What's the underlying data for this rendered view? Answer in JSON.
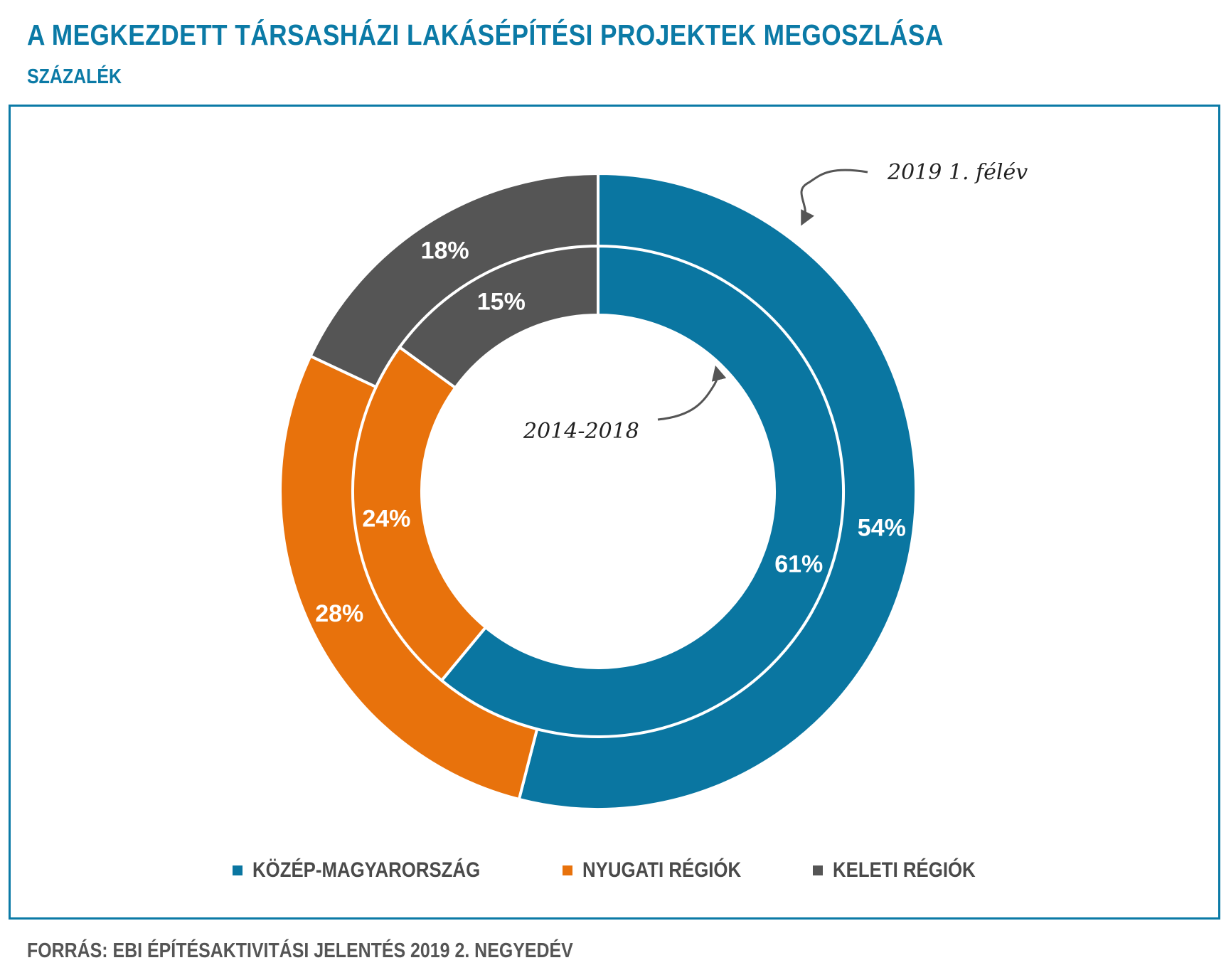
{
  "title": "A MEGKEZDETT TÁRSASHÁZI LAKÁSÉPÍTÉSI PROJEKTEK MEGOSZLÁSA",
  "subtitle": "SZÁZALÉK",
  "source": "FORRÁS: EBI ÉPÍTÉSAKTIVITÁSI JELENTÉS 2019 2. NEGYEDÉV",
  "colors": {
    "title": "#0b7aa6",
    "frame": "#0b7aa6",
    "kozep": "#0a76a1",
    "nyugati": "#e8720c",
    "keleti": "#555555"
  },
  "annotations": {
    "outer": "2019 1. félév",
    "inner": "2014-2018"
  },
  "chart_data": {
    "type": "donut",
    "categories": [
      "KÖZÉP-MAGYARORSZÁG",
      "NYUGATI RÉGIÓK",
      "KELETI RÉGIÓK"
    ],
    "series": [
      {
        "name": "2019 1. félév",
        "ring": "outer",
        "values": [
          54,
          28,
          18
        ],
        "labels": [
          "54%",
          "28%",
          "18%"
        ]
      },
      {
        "name": "2014-2018",
        "ring": "inner",
        "values": [
          61,
          24,
          15
        ],
        "labels": [
          "61%",
          "24%",
          "15%"
        ]
      }
    ],
    "legend": [
      "KÖZÉP-MAGYARORSZÁG",
      "NYUGATI RÉGIÓK",
      "KELETI RÉGIÓK"
    ],
    "legend_position": "bottom"
  }
}
